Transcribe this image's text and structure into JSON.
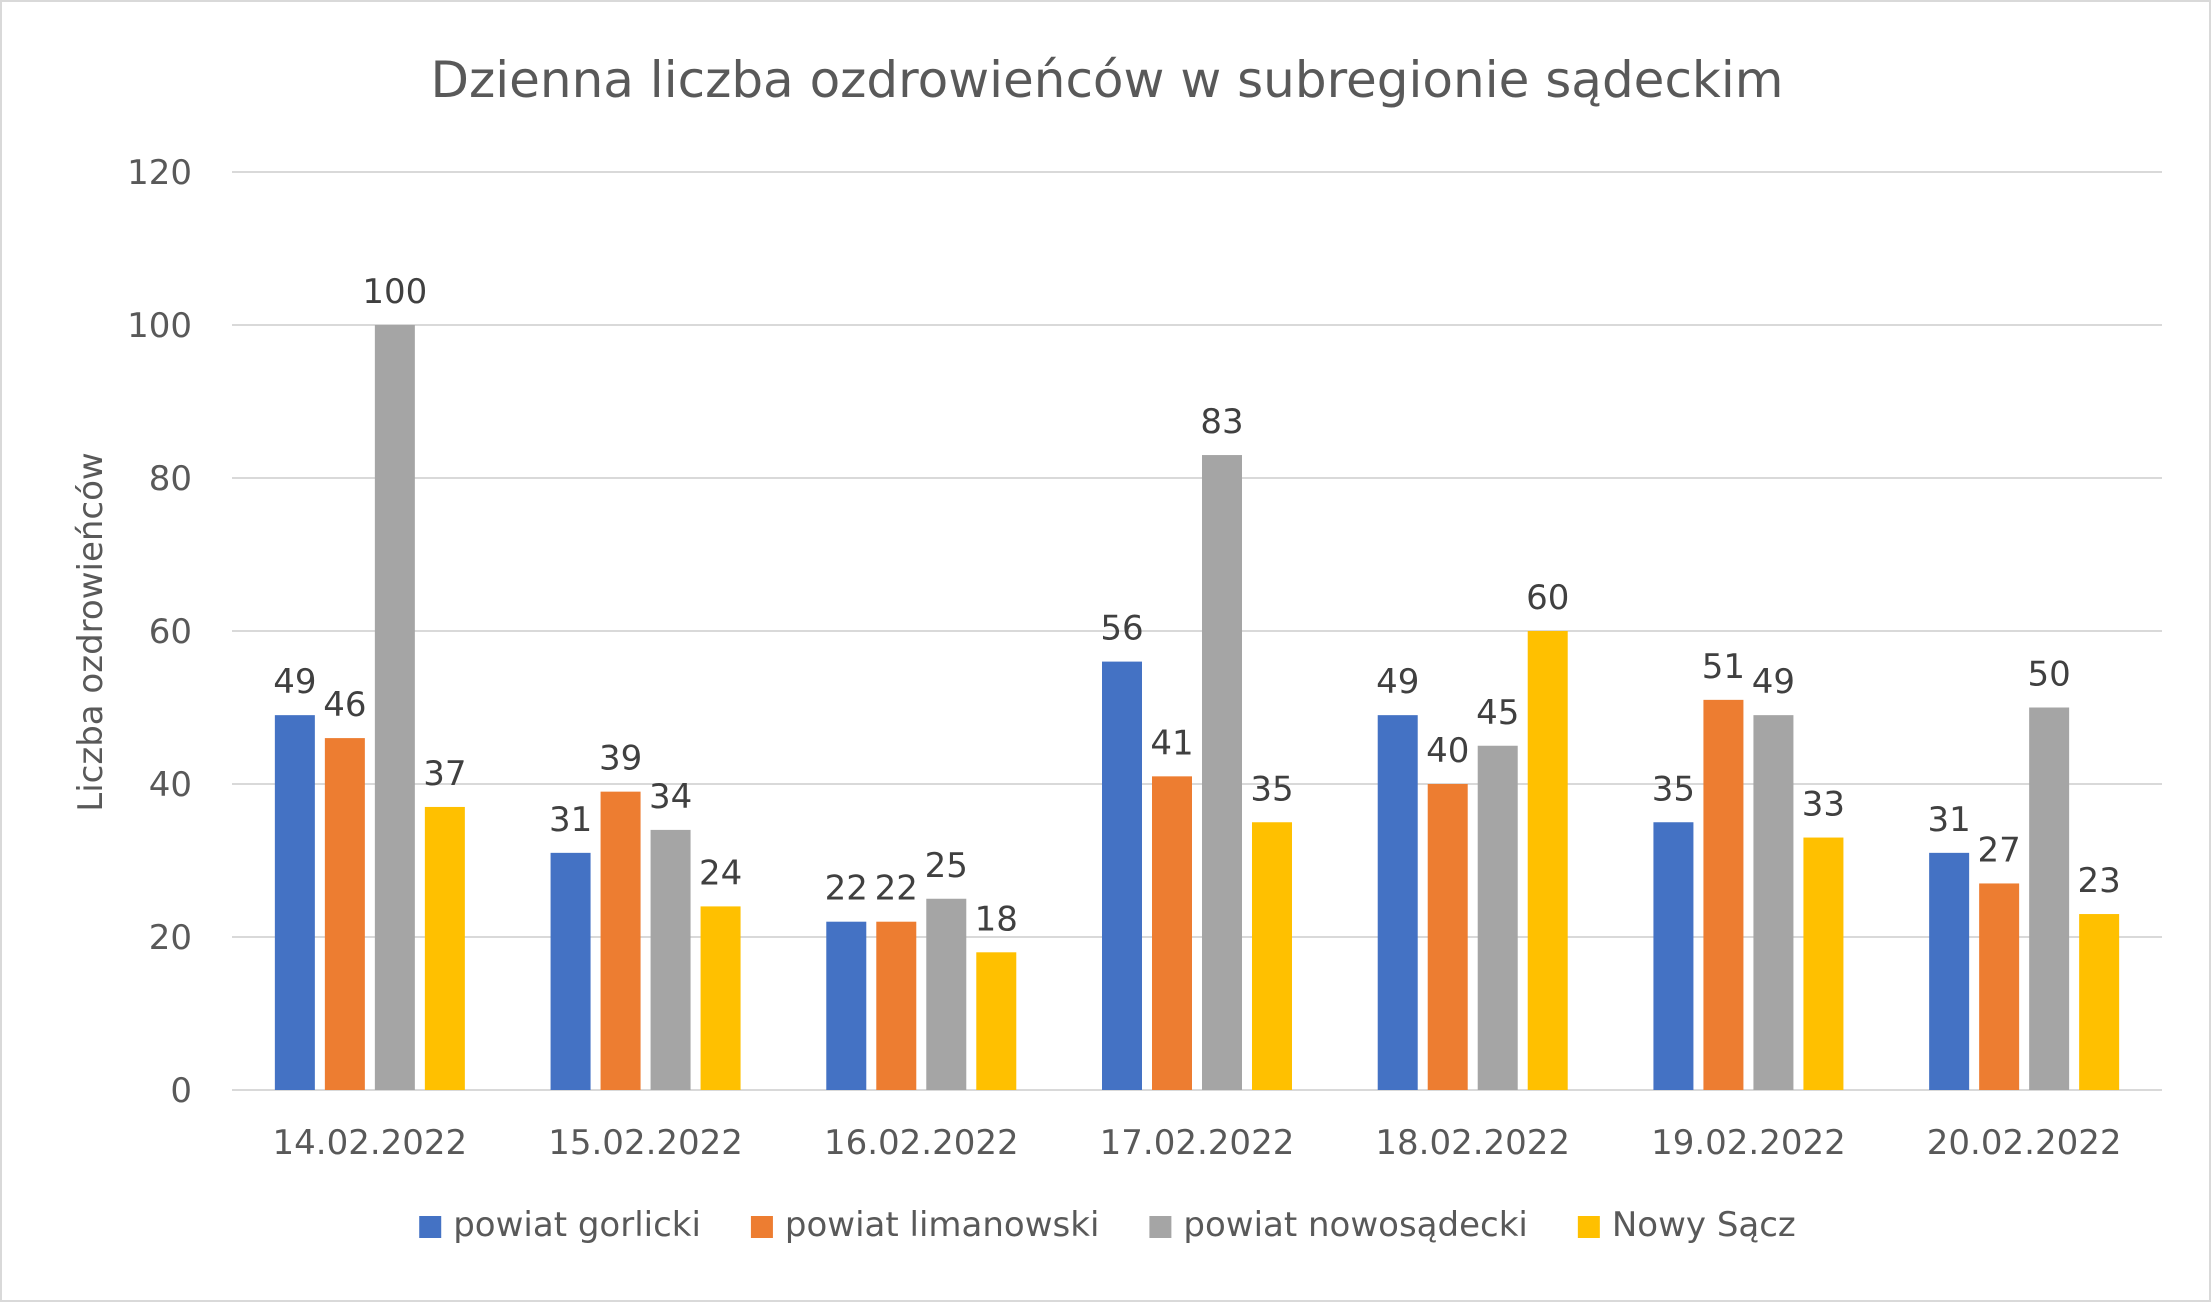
{
  "chart_data": {
    "type": "bar",
    "title": "Dzienna liczba ozdrowieńców w subregionie sądeckim",
    "xlabel": "",
    "ylabel": "Liczba ozdrowieńców",
    "ylim": [
      0,
      120
    ],
    "yticks": [
      0,
      20,
      40,
      60,
      80,
      100,
      120
    ],
    "grid": true,
    "legend_position": "bottom",
    "categories": [
      "14.02.2022",
      "15.02.2022",
      "16.02.2022",
      "17.02.2022",
      "18.02.2022",
      "19.02.2022",
      "20.02.2022"
    ],
    "series": [
      {
        "name": "powiat gorlicki",
        "color": "#4472C4",
        "values": [
          49,
          31,
          22,
          56,
          49,
          35,
          31
        ]
      },
      {
        "name": "powiat limanowski",
        "color": "#ED7D31",
        "values": [
          46,
          39,
          22,
          41,
          40,
          51,
          27
        ]
      },
      {
        "name": "powiat nowosądecki",
        "color": "#A5A5A5",
        "values": [
          100,
          34,
          25,
          83,
          45,
          49,
          50
        ]
      },
      {
        "name": "Nowy Sącz",
        "color": "#FFC000",
        "values": [
          37,
          24,
          18,
          35,
          60,
          33,
          23
        ]
      }
    ]
  }
}
